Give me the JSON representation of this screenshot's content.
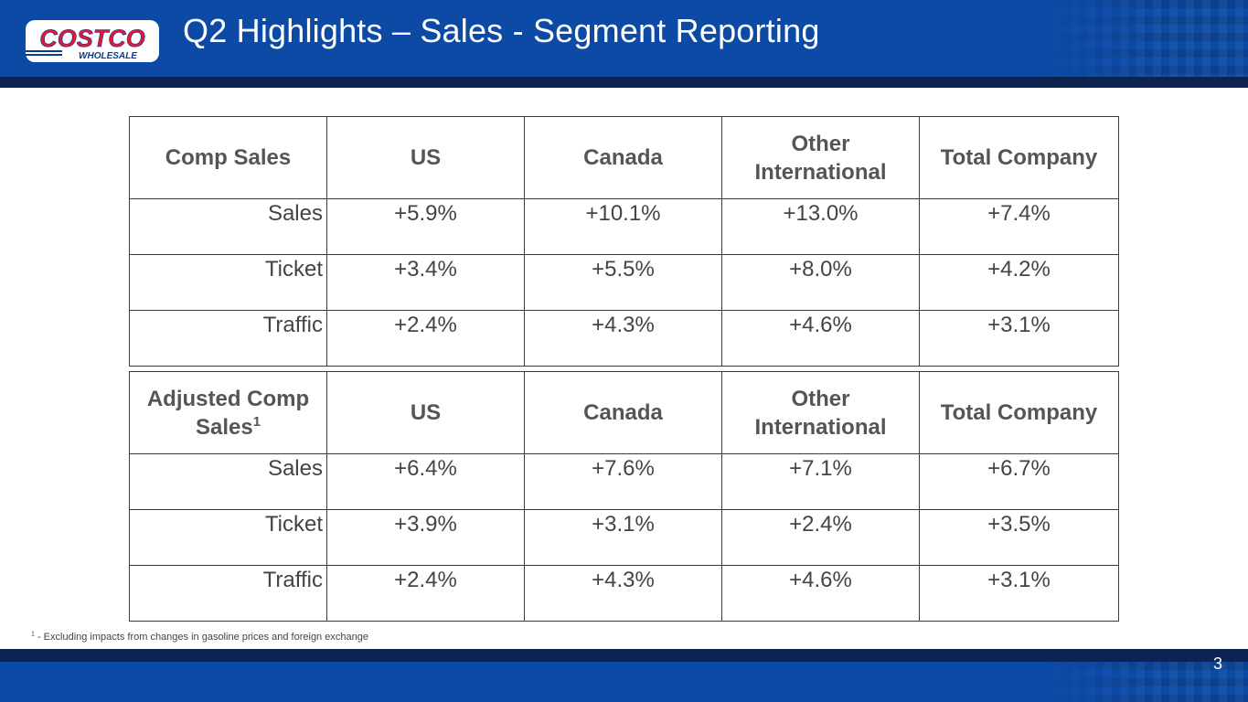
{
  "header": {
    "title": "Q2 Highlights – Sales - Segment Reporting",
    "logo_text_top": "COSTCO",
    "logo_text_bottom": "WHOLESALE"
  },
  "colors": {
    "brand_blue": "#0c4aa6",
    "brand_navy": "#0d2452",
    "logo_red": "#e31837"
  },
  "table1": {
    "headers": [
      "Comp Sales",
      "US",
      "Canada",
      "Other International",
      "Total Company"
    ],
    "rows": [
      {
        "label": "Sales",
        "us": "+5.9%",
        "canada": "+10.1%",
        "other": "+13.0%",
        "total": "+7.4%"
      },
      {
        "label": "Ticket",
        "us": "+3.4%",
        "canada": "+5.5%",
        "other": "+8.0%",
        "total": "+4.2%"
      },
      {
        "label": "Traffic",
        "us": "+2.4%",
        "canada": "+4.3%",
        "other": "+4.6%",
        "total": "+3.1%"
      }
    ]
  },
  "table2": {
    "headers": [
      "Adjusted Comp Sales",
      "US",
      "Canada",
      "Other International",
      "Total Company"
    ],
    "header_superscript": "1",
    "rows": [
      {
        "label": "Sales",
        "us": "+6.4%",
        "canada": "+7.6%",
        "other": "+7.1%",
        "total": "+6.7%"
      },
      {
        "label": "Ticket",
        "us": "+3.9%",
        "canada": "+3.1%",
        "other": "+2.4%",
        "total": "+3.5%"
      },
      {
        "label": "Traffic",
        "us": "+2.4%",
        "canada": "+4.3%",
        "other": "+4.6%",
        "total": "+3.1%"
      }
    ]
  },
  "footnote": {
    "marker": "1",
    "text": " - Excluding impacts from changes in gasoline prices and foreign exchange"
  },
  "page_number": "3"
}
